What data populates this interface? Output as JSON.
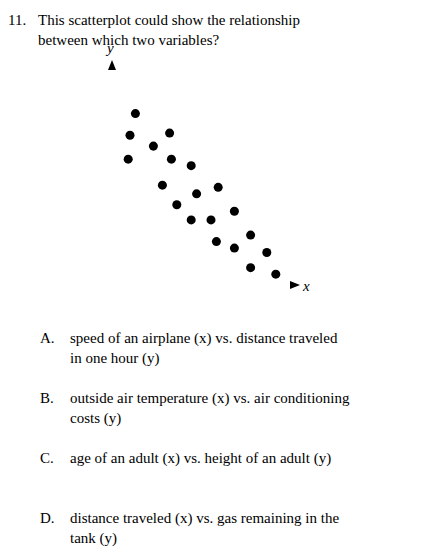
{
  "question": {
    "number": "11.",
    "lines": [
      "This scatterplot could show the relationship",
      "between which two variables?"
    ]
  },
  "chart_data": {
    "type": "scatter",
    "x_label": "x",
    "y_label": "y",
    "x": [
      1.3,
      1.0,
      0.9,
      2.3,
      3.2,
      3.3,
      4.4,
      2.8,
      3.6,
      4.7,
      5.9,
      4.4,
      5.5,
      6.8,
      5.8,
      6.8,
      7.7,
      8.6,
      7.7,
      9.1
    ],
    "values": [
      7.9,
      6.9,
      5.8,
      6.4,
      7.0,
      5.8,
      5.5,
      4.6,
      3.7,
      4.2,
      4.5,
      3.0,
      3.0,
      3.4,
      2.0,
      1.7,
      2.3,
      1.5,
      0.8,
      0.5
    ],
    "xlim": [
      0,
      10
    ],
    "ylim": [
      0,
      10
    ],
    "tick_labels": false,
    "grid": false,
    "color": "#000000",
    "marker": "circle"
  },
  "options": [
    {
      "letter": "A.",
      "lines": [
        "speed of an airplane (x) vs. distance traveled",
        "in one hour (y)"
      ]
    },
    {
      "letter": "B.",
      "lines": [
        "outside air temperature (x) vs. air conditioning",
        "costs (y)"
      ]
    },
    {
      "letter": "C.",
      "lines": [
        "age of an adult (x) vs. height of an adult (y)"
      ]
    },
    {
      "letter": "D.",
      "lines": [
        "distance traveled (x) vs. gas remaining in the",
        "tank (y)"
      ]
    }
  ]
}
